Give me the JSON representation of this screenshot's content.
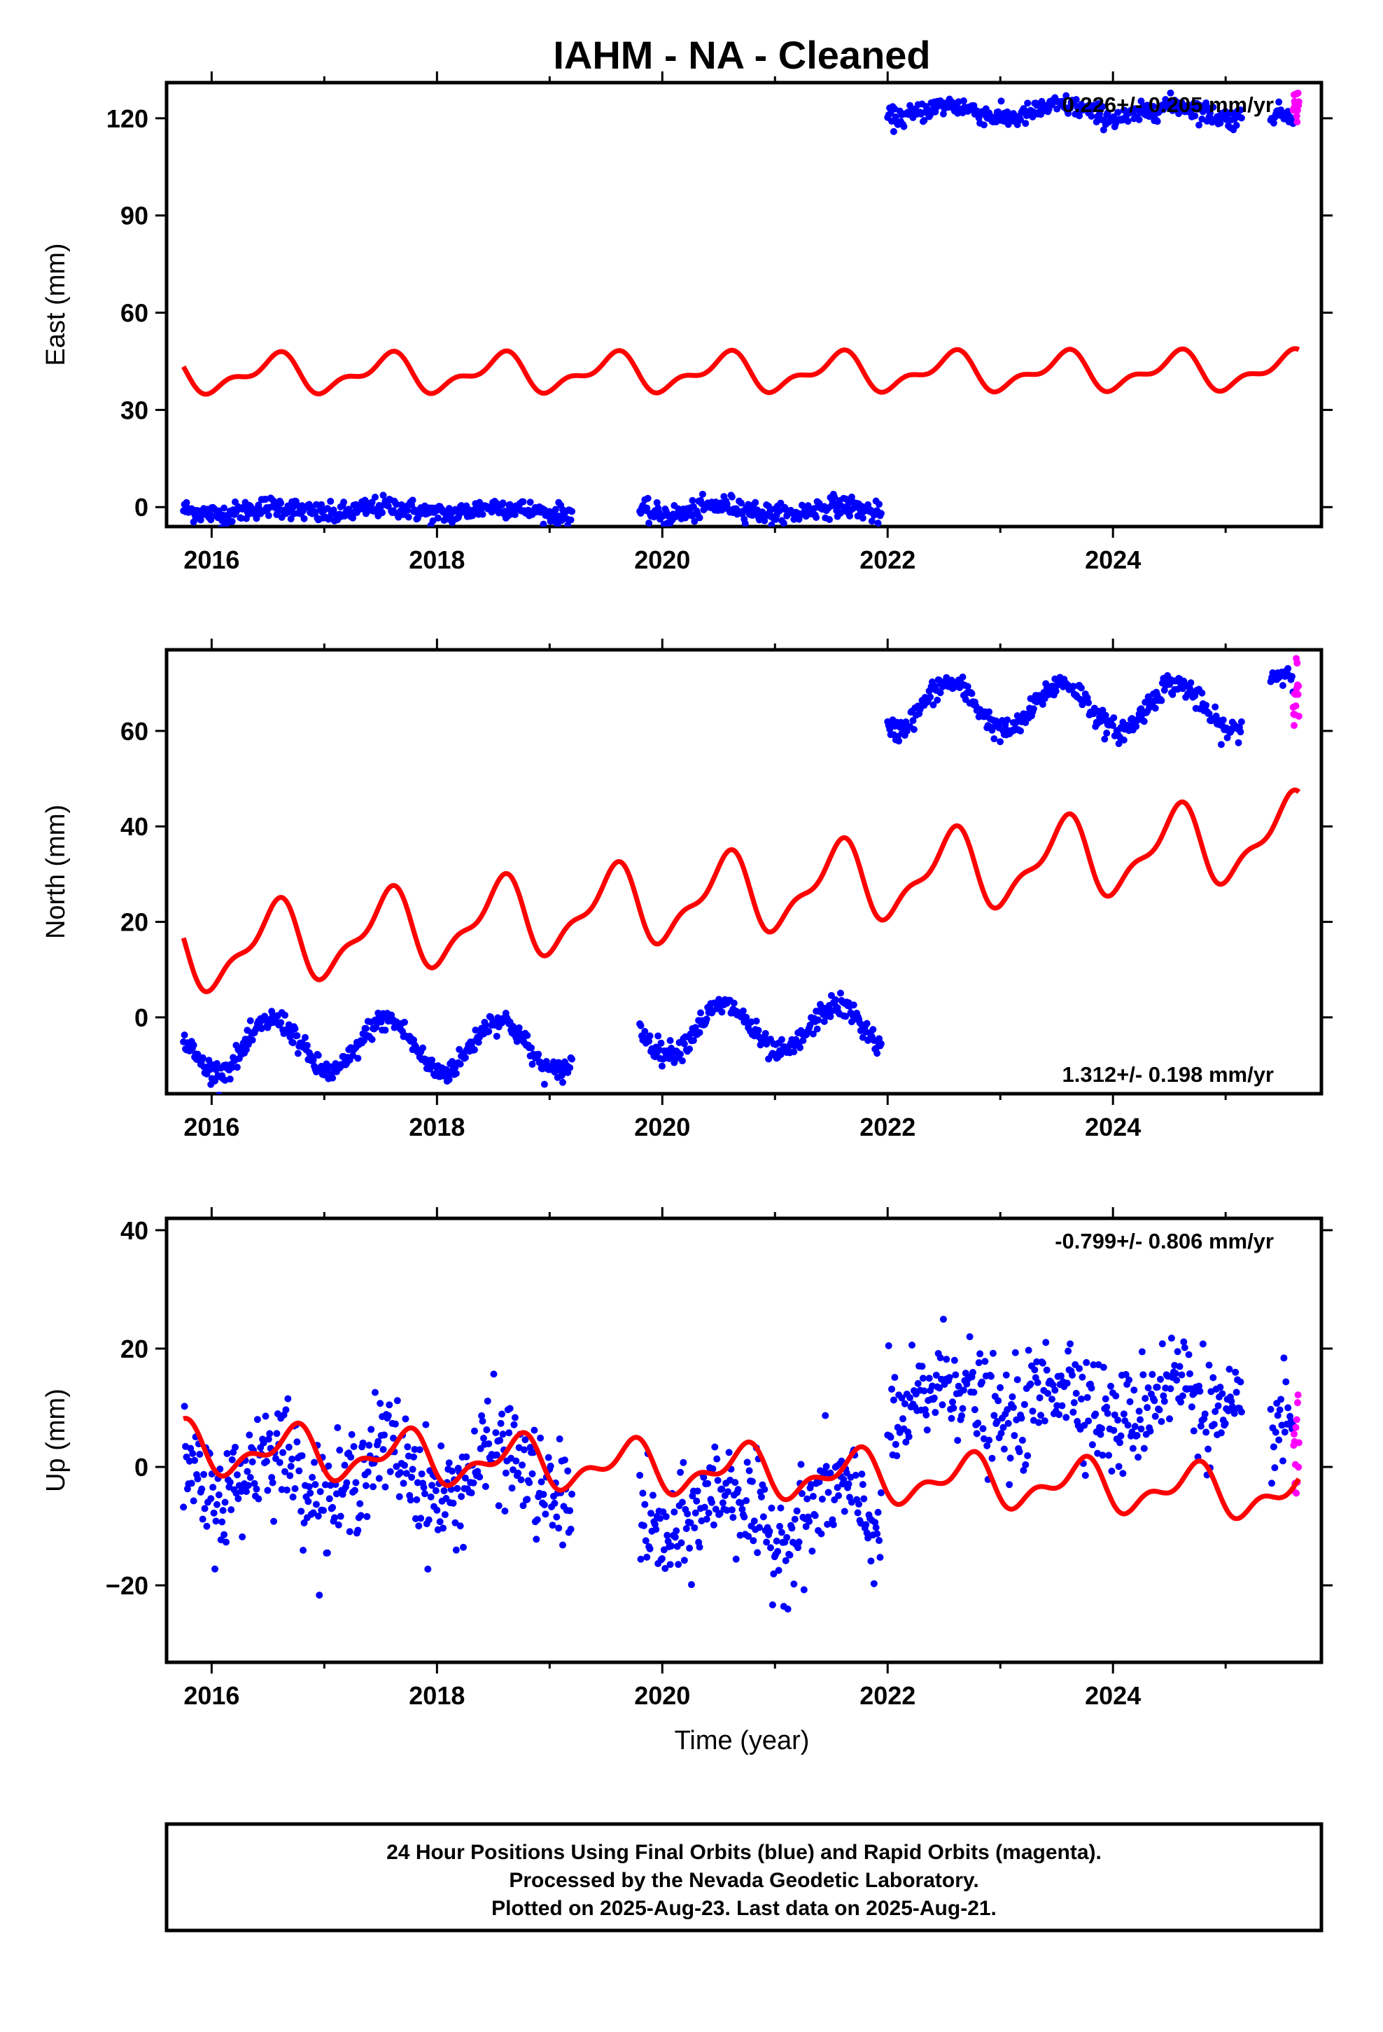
{
  "title": "IAHM  - NA - Cleaned",
  "xlabel": "Time (year)",
  "colors": {
    "final": "#0000ff",
    "rapid": "#ff00ff",
    "model": "#ff0000",
    "axis": "#000000"
  },
  "chart_data": [
    {
      "type": "scatter",
      "name": "east",
      "ylabel": "East (mm)",
      "rate_text": "0.226+/- 0.205 mm/yr",
      "xlim": [
        2015.6,
        2025.85
      ],
      "ylim": [
        -6,
        131
      ],
      "xticks": [
        2016,
        2018,
        2020,
        2022,
        2024
      ],
      "yticks": [
        0,
        30,
        60,
        90,
        120
      ],
      "segments": [
        {
          "x": [
            2015.75,
            2019.2
          ],
          "base": -1.0,
          "amp": 1.2,
          "noise": 1.6
        },
        {
          "x": [
            2019.8,
            2021.95
          ],
          "base": -1.0,
          "amp": 1.5,
          "noise": 1.6
        },
        {
          "x": [
            2022.0,
            2025.15
          ],
          "base": 122.0,
          "amp": 2.0,
          "noise": 1.6
        },
        {
          "x": [
            2025.4,
            2025.6
          ],
          "base": 121.0,
          "amp": 0.5,
          "noise": 1.5
        }
      ],
      "rapid": {
        "x": [
          2025.6,
          2025.65
        ],
        "base": 124.0,
        "noise": 2.5
      },
      "model": {
        "base": 41.0,
        "trend": 0.1,
        "annual": 5.0,
        "semi": 2.6,
        "phase": 0.55
      }
    },
    {
      "type": "scatter",
      "name": "north",
      "ylabel": "North (mm)",
      "rate_text": "1.312+/- 0.198 mm/yr",
      "xlim": [
        2015.6,
        2025.85
      ],
      "ylim": [
        -16,
        77
      ],
      "xticks": [
        2016,
        2018,
        2020,
        2022,
        2024
      ],
      "yticks": [
        0,
        20,
        40,
        60
      ],
      "segments": [
        {
          "x": [
            2015.75,
            2019.2
          ],
          "base": -6.0,
          "amp": 5.5,
          "noise": 1.2
        },
        {
          "x": [
            2019.8,
            2021.95
          ],
          "base": -2.5,
          "amp": 5.0,
          "noise": 1.2
        },
        {
          "x": [
            2022.0,
            2025.15
          ],
          "base": 65.0,
          "amp": 5.0,
          "noise": 1.2
        },
        {
          "x": [
            2025.4,
            2025.6
          ],
          "base": 70.5,
          "amp": 1.5,
          "noise": 1.2
        }
      ],
      "rapid": {
        "x": [
          2025.6,
          2025.65
        ],
        "base": 68.0,
        "noise": 4.0
      },
      "model": {
        "base": 14.0,
        "trend": 2.5,
        "annual": 7.5,
        "semi": 3.0,
        "phase": 0.55
      }
    },
    {
      "type": "scatter",
      "name": "up",
      "ylabel": "Up (mm)",
      "rate_text": "-0.799+/- 0.806 mm/yr",
      "xlim": [
        2015.6,
        2025.85
      ],
      "ylim": [
        -33,
        42
      ],
      "xticks": [
        2016,
        2018,
        2020,
        2022,
        2024
      ],
      "yticks": [
        -20,
        0,
        20,
        40
      ],
      "segments": [
        {
          "x": [
            2015.75,
            2019.2
          ],
          "base": -1.0,
          "amp": 4.5,
          "noise": 4.5
        },
        {
          "x": [
            2019.8,
            2021.95
          ],
          "base": -8.0,
          "amp": 4.5,
          "noise": 4.5
        },
        {
          "x": [
            2022.0,
            2025.15
          ],
          "base": 11.0,
          "amp": 4.0,
          "noise": 4.5
        },
        {
          "x": [
            2025.4,
            2025.6
          ],
          "base": 6.0,
          "amp": 1.0,
          "noise": 4.0
        }
      ],
      "rapid": {
        "x": [
          2025.6,
          2025.65
        ],
        "base": 3.0,
        "noise": 7.0
      },
      "model": {
        "base": 3.0,
        "trend": -0.8,
        "annual": 3.5,
        "semi": 2.0,
        "phase": 0.7
      }
    }
  ],
  "footer": [
    "24 Hour Positions Using Final Orbits (blue) and Rapid Orbits (magenta).",
    "Processed by the Nevada Geodetic Laboratory.",
    "Plotted on 2025-Aug-23. Last data on 2025-Aug-21."
  ]
}
